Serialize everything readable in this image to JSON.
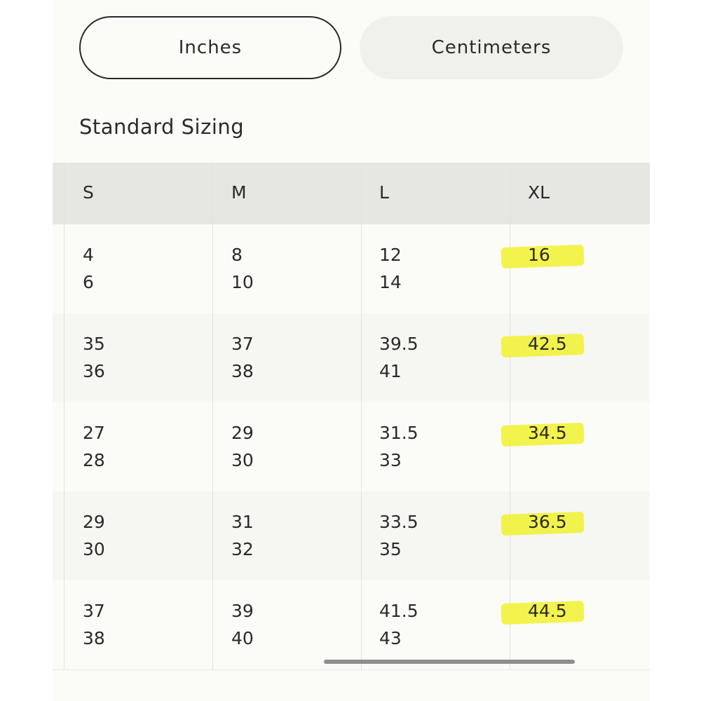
{
  "tabs": [
    "Inches",
    "Centimeters"
  ],
  "heading": "Standard Sizing",
  "table": {
    "header": [
      "S",
      "M",
      "L",
      "XL"
    ],
    "rows": [
      [
        [
          4,
          6
        ],
        [
          8,
          10
        ],
        [
          12,
          14
        ],
        [
          16
        ]
      ],
      [
        [
          35,
          36
        ],
        [
          37,
          38
        ],
        [
          39.5,
          41
        ],
        [
          42.5
        ]
      ],
      [
        [
          27,
          28
        ],
        [
          29,
          30
        ],
        [
          31.5,
          33
        ],
        [
          34.5
        ]
      ],
      [
        [
          29,
          30
        ],
        [
          31,
          32
        ],
        [
          33.5,
          35
        ],
        [
          36.5
        ]
      ],
      [
        [
          37,
          38
        ],
        [
          39,
          40
        ],
        [
          41.5,
          43
        ],
        [
          44.5
        ]
      ]
    ]
  }
}
